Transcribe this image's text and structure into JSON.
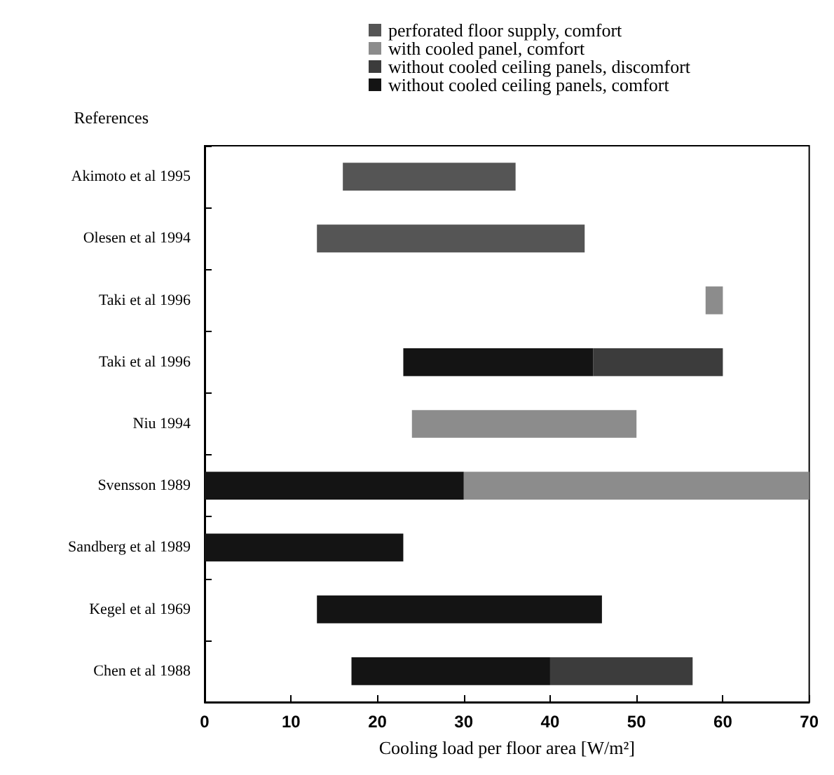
{
  "chart_data": {
    "type": "bar",
    "orientation": "horizontal",
    "ylabel": "References",
    "xlabel": "Cooling load per floor area [W/m²]",
    "categories": [
      "Akimoto et al 1995",
      "Olesen et al 1994",
      "Taki et al 1996",
      "Taki et al 1996",
      "Niu 1994",
      "Svensson 1989",
      "Sandberg et al 1989",
      "Kegel et al 1969",
      "Chen et al 1988"
    ],
    "series": [
      {
        "name": "perforated floor supply, comfort",
        "color": "#555555",
        "base": [
          16,
          13,
          null,
          null,
          null,
          null,
          null,
          null,
          null
        ],
        "values": [
          20,
          31,
          null,
          null,
          null,
          null,
          null,
          null,
          null
        ]
      },
      {
        "name": "with cooled panel, comfort",
        "color": "#8c8c8c",
        "base": [
          null,
          null,
          58,
          null,
          24,
          30,
          null,
          null,
          null
        ],
        "values": [
          null,
          null,
          2,
          null,
          26,
          40,
          null,
          null,
          null
        ]
      },
      {
        "name": "without cooled ceiling panels, discomfort",
        "color": "#3c3c3c",
        "base": [
          null,
          null,
          null,
          45,
          null,
          null,
          null,
          null,
          40
        ],
        "values": [
          null,
          null,
          null,
          15,
          null,
          null,
          null,
          null,
          16.5
        ]
      },
      {
        "name": "without cooled ceiling panels, comfort",
        "color": "#141414",
        "base": [
          null,
          null,
          null,
          23,
          null,
          0,
          0,
          13,
          17
        ],
        "values": [
          null,
          null,
          null,
          22,
          null,
          30,
          23,
          33,
          23
        ]
      }
    ],
    "xlim": [
      0,
      70
    ],
    "xticks": [
      0,
      10,
      20,
      30,
      40,
      50,
      60,
      70
    ],
    "grid": false,
    "legend": "top"
  }
}
